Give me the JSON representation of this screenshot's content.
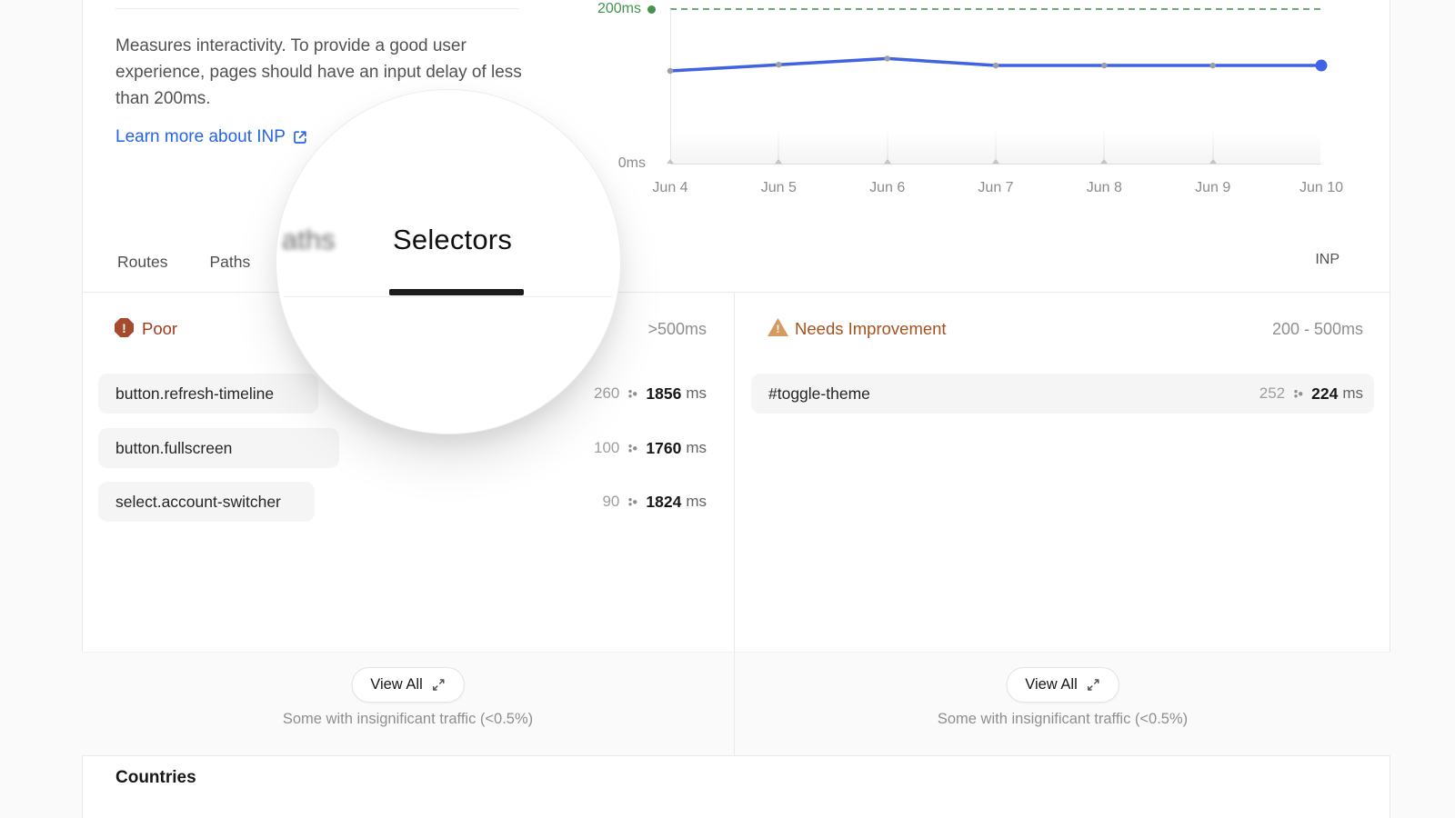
{
  "metric": {
    "description": "Measures interactivity. To provide a good user experience, pages should have an input delay of less than 200ms.",
    "learn_more_label": "Learn more about INP"
  },
  "chart_data": {
    "type": "line",
    "x": [
      "Jun 4",
      "Jun 5",
      "Jun 6",
      "Jun 7",
      "Jun 8",
      "Jun 9",
      "Jun 10"
    ],
    "series": [
      {
        "name": "INP",
        "values": [
          120,
          128,
          136,
          127,
          127,
          127,
          127
        ]
      }
    ],
    "y_max": 200,
    "y_min_label": "0ms",
    "threshold_label": "200ms",
    "threshold_value": 200,
    "grid": "off",
    "colors": {
      "line": "#4262e4",
      "point": "#9aa0a6",
      "threshold": "#44934f"
    }
  },
  "tabs": {
    "items": [
      {
        "label": "Routes"
      },
      {
        "label": "Paths"
      },
      {
        "label": "Selectors"
      }
    ],
    "active": "Selectors",
    "metric_label": "INP"
  },
  "loupe": {
    "blurred_text": "aths",
    "focused_tab": "Selectors"
  },
  "panels": [
    {
      "title": "Poor",
      "range": ">500ms",
      "icon": "octagon-alert-icon",
      "rows": [
        {
          "label": "button.refresh-timeline",
          "count": "260",
          "value": "1856",
          "unit": "ms",
          "bar_pct": 35.5
        },
        {
          "label": "button.fullscreen",
          "count": "100",
          "value": "1760",
          "unit": "ms",
          "bar_pct": 38.9
        },
        {
          "label": "select.account-switcher",
          "count": "90",
          "value": "1824",
          "unit": "ms",
          "bar_pct": 35.0
        }
      ],
      "view_all_label": "View All",
      "footnote": "Some with insignificant traffic (<0.5%)"
    },
    {
      "title": "Needs Improvement",
      "range": "200 - 500ms",
      "icon": "triangle-alert-icon",
      "rows": [
        {
          "label": "#toggle-theme",
          "count": "252",
          "value": "224",
          "unit": "ms",
          "bar_pct": 100
        }
      ],
      "view_all_label": "View All",
      "footnote": "Some with insignificant traffic (<0.5%)"
    }
  ],
  "countries": {
    "title": "Countries"
  },
  "colors": {
    "poor_accent": "#9e3a1e",
    "needs_improvement_accent": "#a5511f",
    "link": "#2563eb",
    "card_border": "#e8e8e8"
  }
}
